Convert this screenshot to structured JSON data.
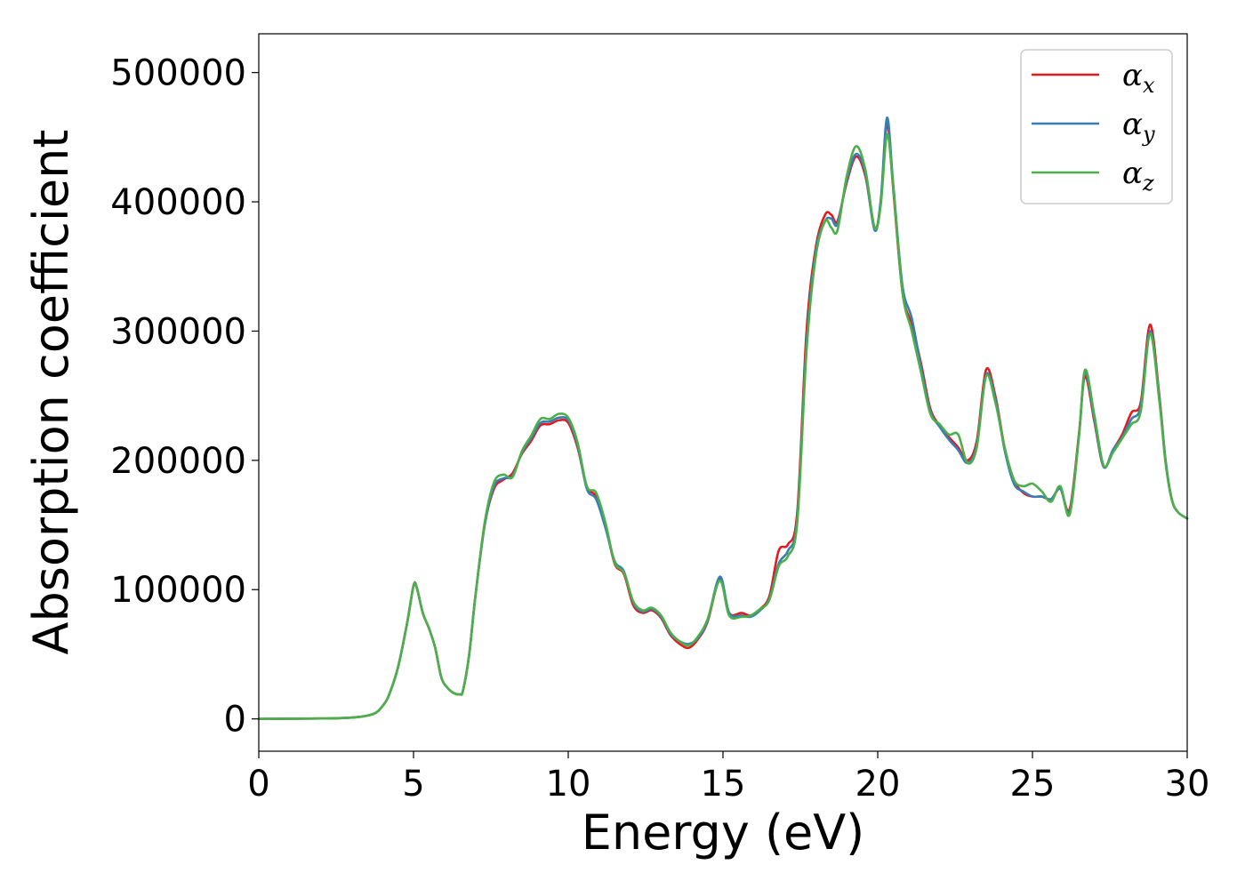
{
  "chart_data": {
    "type": "line",
    "title": "",
    "xlabel": "Energy (eV)",
    "ylabel": "Absorption coefficient",
    "xlim": [
      0,
      30
    ],
    "ylim": [
      -25000,
      530000
    ],
    "xticks": [
      0,
      5,
      10,
      15,
      20,
      25,
      30
    ],
    "yticks": [
      0,
      100000,
      200000,
      300000,
      400000,
      500000
    ],
    "grid": false,
    "legend": "top-right",
    "series": [
      {
        "name": "αx",
        "symbol": "α",
        "subscript": "x",
        "color": "#e41a1c",
        "x": [
          0,
          2,
          3,
          3.5,
          3.8,
          4.0,
          4.2,
          4.5,
          4.8,
          5.0,
          5.1,
          5.3,
          5.5,
          5.7,
          5.9,
          6.1,
          6.3,
          6.5,
          6.6,
          6.8,
          7.0,
          7.3,
          7.6,
          7.9,
          8.2,
          8.5,
          8.8,
          9.1,
          9.4,
          9.7,
          10.0,
          10.3,
          10.6,
          10.9,
          11.2,
          11.5,
          11.8,
          12.1,
          12.4,
          12.7,
          13.0,
          13.3,
          13.6,
          13.9,
          14.2,
          14.5,
          14.9,
          15.2,
          15.6,
          15.9,
          16.2,
          16.5,
          16.8,
          17.1,
          17.4,
          17.7,
          18.0,
          18.3,
          18.5,
          18.7,
          19.0,
          19.3,
          19.6,
          19.9,
          20.1,
          20.3,
          20.5,
          20.8,
          21.1,
          21.4,
          21.7,
          22.0,
          22.3,
          22.6,
          22.9,
          23.2,
          23.5,
          23.8,
          24.1,
          24.4,
          24.7,
          25.0,
          25.3,
          25.6,
          25.9,
          26.2,
          26.5,
          26.7,
          27.0,
          27.3,
          27.6,
          27.9,
          28.2,
          28.5,
          28.8,
          29.1,
          29.3,
          29.5,
          29.7,
          30
        ],
        "y": [
          0,
          300,
          1000,
          2500,
          5000,
          10000,
          18000,
          40000,
          75000,
          103000,
          102000,
          82000,
          70000,
          55000,
          32000,
          24000,
          20000,
          19000,
          22000,
          50000,
          95000,
          150000,
          178000,
          185000,
          190000,
          205000,
          215000,
          227000,
          228000,
          231000,
          229000,
          210000,
          180000,
          172000,
          150000,
          120000,
          112000,
          88000,
          82000,
          84000,
          78000,
          65000,
          58000,
          55000,
          62000,
          75000,
          108000,
          82000,
          82000,
          80000,
          85000,
          95000,
          130000,
          135000,
          160000,
          300000,
          365000,
          390000,
          390000,
          385000,
          415000,
          435000,
          420000,
          380000,
          400000,
          460000,
          410000,
          330000,
          305000,
          275000,
          240000,
          227000,
          218000,
          210000,
          200000,
          215000,
          270000,
          250000,
          210000,
          185000,
          175000,
          172000,
          172000,
          170000,
          178000,
          162000,
          220000,
          265000,
          230000,
          195000,
          208000,
          220000,
          237000,
          245000,
          305000,
          250000,
          200000,
          170000,
          160000,
          155000
        ]
      },
      {
        "name": "αy",
        "symbol": "α",
        "subscript": "y",
        "color": "#377eb8",
        "x": [
          0,
          2,
          3,
          3.5,
          3.8,
          4.0,
          4.2,
          4.5,
          4.8,
          5.0,
          5.1,
          5.3,
          5.5,
          5.7,
          5.9,
          6.1,
          6.3,
          6.5,
          6.6,
          6.8,
          7.0,
          7.3,
          7.6,
          7.9,
          8.2,
          8.5,
          8.8,
          9.1,
          9.4,
          9.7,
          10.0,
          10.3,
          10.6,
          10.9,
          11.2,
          11.5,
          11.8,
          12.1,
          12.4,
          12.7,
          13.0,
          13.3,
          13.6,
          13.9,
          14.2,
          14.5,
          14.9,
          15.2,
          15.6,
          15.9,
          16.2,
          16.5,
          16.8,
          17.1,
          17.4,
          17.7,
          18.0,
          18.3,
          18.5,
          18.7,
          19.0,
          19.3,
          19.6,
          19.9,
          20.1,
          20.3,
          20.5,
          20.8,
          21.1,
          21.4,
          21.7,
          22.0,
          22.3,
          22.6,
          22.9,
          23.2,
          23.5,
          23.8,
          24.1,
          24.4,
          24.7,
          25.0,
          25.3,
          25.6,
          25.9,
          26.2,
          26.5,
          26.7,
          27.0,
          27.3,
          27.6,
          27.9,
          28.2,
          28.5,
          28.8,
          29.1,
          29.3,
          29.5,
          29.7,
          30
        ],
        "y": [
          0,
          300,
          1000,
          2500,
          5000,
          10000,
          18000,
          40000,
          75000,
          103000,
          102000,
          82000,
          70000,
          55000,
          32000,
          24000,
          20000,
          19000,
          22000,
          50000,
          95000,
          150000,
          180000,
          186000,
          188000,
          206000,
          217000,
          229000,
          230000,
          233000,
          231000,
          212000,
          178000,
          170000,
          148000,
          122000,
          114000,
          90000,
          83000,
          85000,
          79000,
          66000,
          60000,
          58000,
          63000,
          76000,
          110000,
          82000,
          80000,
          79000,
          84000,
          93000,
          120000,
          130000,
          155000,
          290000,
          362000,
          385000,
          387000,
          383000,
          417000,
          437000,
          422000,
          378000,
          402000,
          465000,
          414000,
          335000,
          310000,
          272000,
          238000,
          226000,
          216000,
          208000,
          198000,
          212000,
          266000,
          248000,
          208000,
          182000,
          176000,
          172000,
          172000,
          170000,
          178000,
          160000,
          218000,
          268000,
          232000,
          195000,
          208000,
          218000,
          232000,
          242000,
          300000,
          248000,
          200000,
          170000,
          160000,
          155000
        ]
      },
      {
        "name": "αz",
        "symbol": "α",
        "subscript": "z",
        "color": "#4daf4a",
        "x": [
          0,
          2,
          3,
          3.5,
          3.8,
          4.0,
          4.2,
          4.5,
          4.8,
          5.0,
          5.1,
          5.3,
          5.5,
          5.7,
          5.9,
          6.1,
          6.3,
          6.5,
          6.6,
          6.8,
          7.0,
          7.3,
          7.6,
          7.9,
          8.2,
          8.5,
          8.8,
          9.1,
          9.4,
          9.7,
          10.0,
          10.3,
          10.6,
          10.9,
          11.2,
          11.5,
          11.8,
          12.1,
          12.4,
          12.7,
          13.0,
          13.3,
          13.6,
          13.9,
          14.2,
          14.5,
          14.9,
          15.2,
          15.6,
          15.9,
          16.2,
          16.5,
          16.8,
          17.1,
          17.4,
          17.7,
          18.0,
          18.3,
          18.5,
          18.7,
          19.0,
          19.3,
          19.6,
          19.9,
          20.1,
          20.3,
          20.5,
          20.8,
          21.1,
          21.4,
          21.7,
          22.0,
          22.3,
          22.6,
          22.9,
          23.2,
          23.5,
          23.8,
          24.1,
          24.4,
          24.7,
          25.0,
          25.3,
          25.6,
          25.9,
          26.2,
          26.5,
          26.7,
          27.0,
          27.3,
          27.6,
          27.9,
          28.2,
          28.5,
          28.8,
          29.1,
          29.3,
          29.5,
          29.7,
          30
        ],
        "y": [
          0,
          300,
          1000,
          2500,
          5000,
          10000,
          18000,
          40000,
          75000,
          103000,
          102000,
          82000,
          70000,
          55000,
          32000,
          24000,
          20000,
          19000,
          22000,
          50000,
          95000,
          152000,
          183000,
          189000,
          187000,
          207000,
          219000,
          232000,
          232000,
          236000,
          233000,
          214000,
          180000,
          175000,
          152000,
          121000,
          113000,
          91000,
          84000,
          86000,
          80000,
          67000,
          60000,
          57000,
          64000,
          77000,
          107000,
          80000,
          79000,
          80000,
          85000,
          92000,
          118000,
          126000,
          152000,
          285000,
          358000,
          385000,
          380000,
          378000,
          420000,
          443000,
          425000,
          380000,
          398000,
          452000,
          412000,
          330000,
          300000,
          268000,
          236000,
          228000,
          220000,
          220000,
          198000,
          210000,
          265000,
          245000,
          210000,
          185000,
          180000,
          182000,
          176000,
          168000,
          180000,
          158000,
          218000,
          270000,
          235000,
          196000,
          206000,
          217000,
          228000,
          238000,
          298000,
          246000,
          198000,
          170000,
          160000,
          155000
        ]
      }
    ]
  }
}
